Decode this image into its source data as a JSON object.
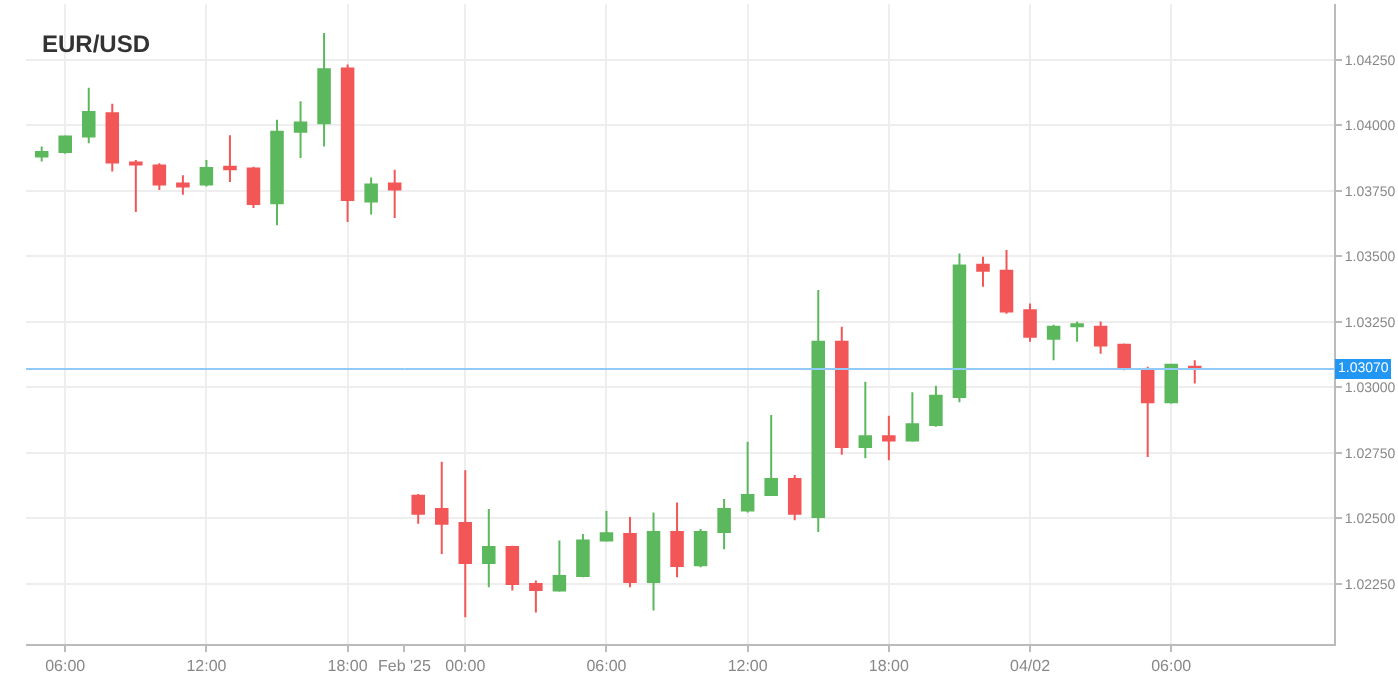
{
  "chart_data": [
    {
      "type": "candlestick",
      "title": "EUR/USD",
      "x": [
        "2025-01-31T05:00",
        "2025-01-31T06:00",
        "2025-01-31T07:00",
        "2025-01-31T08:00",
        "2025-01-31T09:00",
        "2025-01-31T10:00",
        "2025-01-31T11:00",
        "2025-01-31T12:00",
        "2025-01-31T13:00",
        "2025-01-31T14:00",
        "2025-01-31T15:00",
        "2025-01-31T16:00",
        "2025-01-31T17:00",
        "2025-01-31T18:00",
        "2025-01-31T19:00",
        "2025-01-31T20:00"
      ],
      "ohlc": [
        [
          1.03881,
          1.03919,
          1.03862,
          1.03898
        ],
        [
          1.03898,
          1.03962,
          1.03891,
          1.03957
        ],
        [
          1.03957,
          1.04143,
          1.03931,
          1.04051
        ],
        [
          1.04046,
          1.04082,
          1.03824,
          1.03858
        ],
        [
          1.03858,
          1.03868,
          1.03669,
          1.0385
        ],
        [
          1.03847,
          1.03855,
          1.03753,
          1.03774
        ],
        [
          1.03778,
          1.03809,
          1.03735,
          1.03766
        ],
        [
          1.03774,
          1.03868,
          1.03766,
          1.03837
        ],
        [
          1.03842,
          1.03962,
          1.03784,
          1.03832
        ],
        [
          1.03835,
          1.03842,
          1.03684,
          1.037
        ],
        [
          1.03702,
          1.04021,
          1.03618,
          1.03975
        ],
        [
          1.03975,
          1.04092,
          1.03875,
          1.04011
        ],
        [
          1.04008,
          1.04352,
          1.03919,
          1.04214
        ],
        [
          1.04217,
          1.04232,
          1.03631,
          1.03715
        ],
        [
          1.03709,
          1.03801,
          1.03659,
          1.03774
        ],
        [
          1.03778,
          1.0383,
          1.03646,
          1.03755
        ]
      ],
      "colors": [
        "#5cb85c",
        "#5cb85c",
        "#5cb85c",
        "#f25656",
        "#f25656",
        "#f25656",
        "#f25656",
        "#5cb85c",
        "#f25656",
        "#f25656",
        "#5cb85c",
        "#5cb85c",
        "#5cb85c",
        "#f25656",
        "#5cb85c",
        "#f25656"
      ],
      "xlim": [
        "2025-01-31T04:20",
        "2025-01-31T20:25"
      ],
      "xticks": [
        {
          "value": "2025-01-31T06:00",
          "label": "06:00"
        },
        {
          "value": "2025-01-31T12:00",
          "label": "12:00"
        },
        {
          "value": "2025-01-31T18:00",
          "label": "18:00"
        }
      ],
      "ylim": [
        1.0202,
        1.04463
      ],
      "yticks": [
        1.0225,
        1.025,
        1.0275,
        1.03,
        1.0325,
        1.035,
        1.0375,
        1.04,
        1.0425
      ],
      "tick_labels": "x",
      "ref_lines": [
        {
          "axis": "y",
          "value": 1.0307,
          "color": "#90caf9"
        }
      ],
      "grid": true
    },
    {
      "type": "candlestick",
      "x": [
        "2025-02-02T22:00",
        "2025-02-02T23:00",
        "2025-02-03T00:00",
        "2025-02-03T01:00",
        "2025-02-03T02:00",
        "2025-02-03T03:00",
        "2025-02-03T04:00",
        "2025-02-03T05:00",
        "2025-02-03T06:00",
        "2025-02-03T07:00",
        "2025-02-03T08:00",
        "2025-02-03T09:00",
        "2025-02-03T10:00",
        "2025-02-03T11:00",
        "2025-02-03T12:00",
        "2025-02-03T13:00",
        "2025-02-03T14:00",
        "2025-02-03T15:00",
        "2025-02-03T16:00",
        "2025-02-03T17:00",
        "2025-02-03T18:00",
        "2025-02-03T19:00",
        "2025-02-03T20:00",
        "2025-02-03T21:00",
        "2025-02-03T22:00",
        "2025-02-03T23:00",
        "2025-02-04T00:00",
        "2025-02-04T01:00",
        "2025-02-04T02:00",
        "2025-02-04T03:00",
        "2025-02-04T04:00",
        "2025-02-04T05:00",
        "2025-02-04T06:00",
        "2025-02-04T07:00"
      ],
      "ohlc": [
        [
          1.02586,
          1.02593,
          1.02479,
          1.02517
        ],
        [
          1.02535,
          1.02716,
          1.02364,
          1.02479
        ],
        [
          1.02482,
          1.02683,
          1.02122,
          1.02329
        ],
        [
          1.02329,
          1.02535,
          1.02237,
          1.0239
        ],
        [
          1.0239,
          1.02395,
          1.02224,
          1.02249
        ],
        [
          1.02249,
          1.02262,
          1.0214,
          1.02226
        ],
        [
          1.02224,
          1.02415,
          1.02219,
          1.0228
        ],
        [
          1.0228,
          1.0244,
          1.02275,
          1.02415
        ],
        [
          1.02415,
          1.02528,
          1.0241,
          1.02443
        ],
        [
          1.0244,
          1.02505,
          1.02237,
          1.02257
        ],
        [
          1.02257,
          1.02522,
          1.02148,
          1.02448
        ],
        [
          1.02448,
          1.0256,
          1.02275,
          1.02318
        ],
        [
          1.02321,
          1.02459,
          1.02313,
          1.02448
        ],
        [
          1.02448,
          1.02573,
          1.02382,
          1.02535
        ],
        [
          1.0253,
          1.02792,
          1.02522,
          1.02589
        ],
        [
          1.02589,
          1.02894,
          1.02589,
          1.0265
        ],
        [
          1.0265,
          1.02665,
          1.02492,
          1.02517
        ],
        [
          1.02505,
          1.03371,
          1.02448,
          1.03174
        ],
        [
          1.03174,
          1.03231,
          1.02742,
          1.02772
        ],
        [
          1.02772,
          1.03021,
          1.02729,
          1.02813
        ],
        [
          1.02813,
          1.02891,
          1.02721,
          1.02797
        ],
        [
          1.02797,
          1.02981,
          1.02792,
          1.02859
        ],
        [
          1.02856,
          1.03006,
          1.02849,
          1.02968
        ],
        [
          1.02963,
          1.03511,
          1.02943,
          1.03465
        ],
        [
          1.03468,
          1.03498,
          1.03384,
          1.03445
        ],
        [
          1.03445,
          1.03524,
          1.03281,
          1.03289
        ],
        [
          1.03294,
          1.0332,
          1.03174,
          1.03193
        ],
        [
          1.03185,
          1.03239,
          1.03103,
          1.03231
        ],
        [
          1.03233,
          1.03251,
          1.03174,
          1.03241
        ],
        [
          1.03231,
          1.03251,
          1.03128,
          1.03159
        ],
        [
          1.03162,
          1.03167,
          1.03065,
          1.0307
        ],
        [
          1.0307,
          1.03078,
          1.02734,
          1.02943
        ],
        [
          1.02943,
          1.0309,
          1.02937,
          1.03086
        ],
        [
          1.03078,
          1.03103,
          1.03014,
          1.0307
        ]
      ],
      "colors": [
        "#f25656",
        "#f25656",
        "#f25656",
        "#5cb85c",
        "#f25656",
        "#f25656",
        "#5cb85c",
        "#5cb85c",
        "#5cb85c",
        "#f25656",
        "#5cb85c",
        "#f25656",
        "#5cb85c",
        "#5cb85c",
        "#5cb85c",
        "#5cb85c",
        "#f25656",
        "#5cb85c",
        "#f25656",
        "#5cb85c",
        "#f25656",
        "#5cb85c",
        "#5cb85c",
        "#5cb85c",
        "#f25656",
        "#f25656",
        "#f25656",
        "#5cb85c",
        "#5cb85c",
        "#f25656",
        "#f25656",
        "#f25656",
        "#5cb85c",
        "#f25656"
      ],
      "xlim": [
        "2025-02-02T21:25",
        "2025-02-04T12:55"
      ],
      "xticks": [
        {
          "value": "2025-02-02T21:25",
          "label": "Feb '25"
        },
        {
          "value": "2025-02-03T00:00",
          "label": "00:00"
        },
        {
          "value": "2025-02-03T06:00",
          "label": "06:00"
        },
        {
          "value": "2025-02-03T12:00",
          "label": "12:00"
        },
        {
          "value": "2025-02-03T18:00",
          "label": "18:00"
        },
        {
          "value": "2025-02-04T00:00",
          "label": "04/02"
        },
        {
          "value": "2025-02-04T06:00",
          "label": "06:00"
        }
      ],
      "ylim": [
        1.0202,
        1.04463
      ],
      "yticks": [
        {
          "value": 1.0225,
          "label": "1.02250"
        },
        {
          "value": 1.025,
          "label": "1.02500"
        },
        {
          "value": 1.0275,
          "label": "1.02750"
        },
        {
          "value": 1.03,
          "label": "1.03000"
        },
        {
          "value": 1.0325,
          "label": "1.03250"
        },
        {
          "value": 1.035,
          "label": "1.03500"
        },
        {
          "value": 1.0375,
          "label": "1.03750"
        },
        {
          "value": 1.04,
          "label": "1.04000"
        },
        {
          "value": 1.0425,
          "label": "1.04250"
        }
      ],
      "ref_lines": [
        {
          "axis": "y",
          "value": 1.0307,
          "label": "1.03070",
          "color": "#90caf9"
        }
      ],
      "grid": true
    }
  ]
}
